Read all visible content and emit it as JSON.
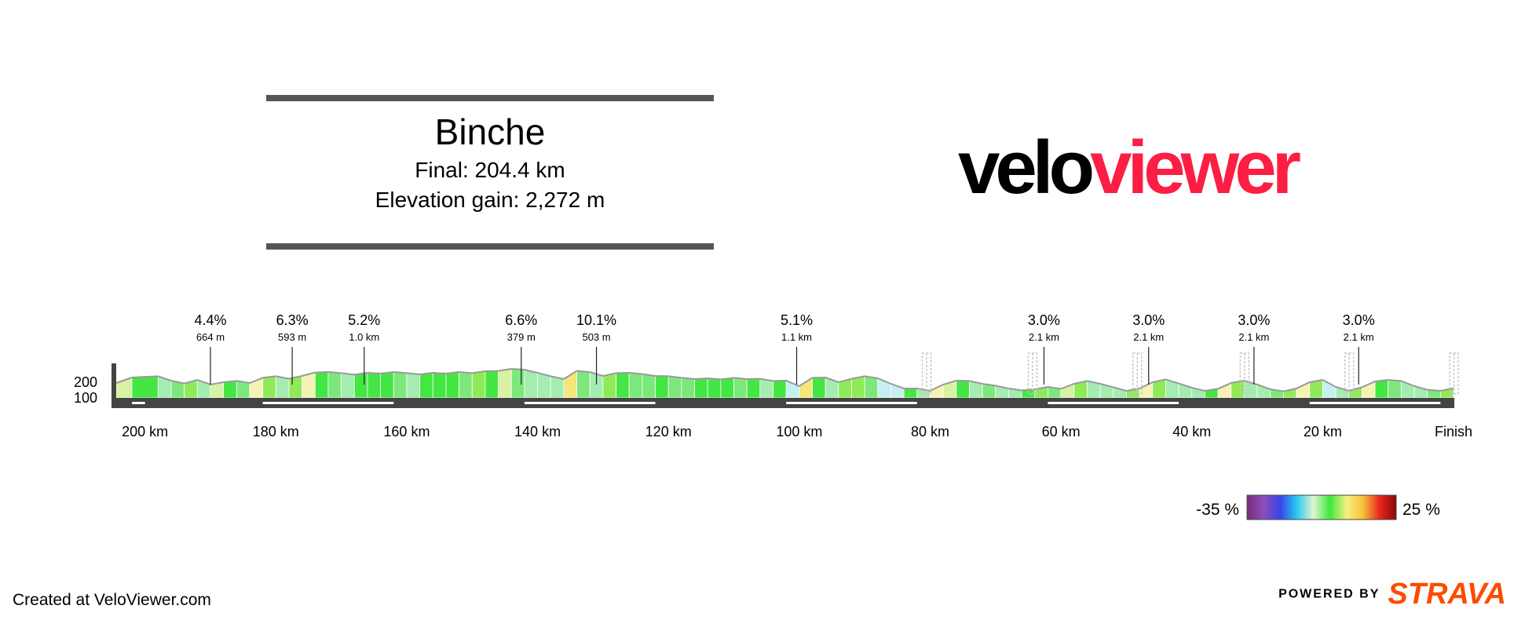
{
  "stage": {
    "title": "Binche",
    "final_label": "Final: 204.4 km",
    "elevation_label": "Elevation gain: 2,272 m"
  },
  "logo": {
    "part1": "velo",
    "part2": "viewer",
    "color1": "#000000",
    "color2": "#fc1e43"
  },
  "footer": {
    "created": "Created at VeloViewer.com",
    "powered_by": "POWERED BY",
    "strava": "STRAVA",
    "strava_color": "#fc4c02"
  },
  "chart_data": {
    "type": "area",
    "total_km": 204.4,
    "x_unit": "km",
    "x_tick_labels": [
      "200 km",
      "180 km",
      "160 km",
      "140 km",
      "120 km",
      "100 km",
      "80 km",
      "60 km",
      "40 km",
      "20 km",
      "Finish"
    ],
    "x_ticks_km_to_finish": [
      200,
      180,
      160,
      140,
      120,
      100,
      80,
      60,
      40,
      20,
      0
    ],
    "y_tick_labels": [
      "200",
      "100"
    ],
    "y_ticks": [
      200,
      100
    ],
    "profile": {
      "km_to_finish": [
        204.4,
        202,
        198,
        196,
        194,
        192,
        190,
        188,
        186,
        184,
        182,
        180,
        178,
        176,
        174,
        172,
        170,
        168,
        166,
        164,
        162,
        160,
        158,
        156,
        154,
        152,
        150,
        148,
        146,
        144,
        142,
        140,
        138,
        136,
        134,
        132,
        130,
        128,
        126,
        124,
        122,
        120,
        118,
        116,
        114,
        112,
        110,
        108,
        106,
        104,
        102,
        100,
        98,
        96,
        94,
        92,
        90,
        88,
        86,
        84,
        82,
        80,
        78,
        76,
        74,
        72,
        70,
        68,
        66,
        64,
        62,
        60,
        58,
        56,
        54,
        52,
        50,
        48,
        46,
        44,
        42,
        40,
        38,
        36,
        34,
        32,
        30,
        28,
        26,
        24,
        22,
        20,
        18,
        16,
        14,
        12,
        10,
        8,
        6,
        4,
        2,
        0
      ],
      "elevation_m": [
        135,
        170,
        178,
        150,
        132,
        155,
        125,
        140,
        148,
        135,
        168,
        178,
        162,
        180,
        202,
        205,
        198,
        188,
        200,
        195,
        205,
        198,
        190,
        200,
        195,
        205,
        198,
        210,
        212,
        225,
        220,
        200,
        178,
        160,
        212,
        205,
        180,
        198,
        200,
        192,
        180,
        178,
        168,
        160,
        165,
        158,
        168,
        160,
        162,
        148,
        150,
        115,
        168,
        170,
        140,
        162,
        178,
        165,
        130,
        100,
        100,
        85,
        125,
        150,
        148,
        130,
        118,
        100,
        88,
        95,
        110,
        98,
        130,
        148,
        130,
        108,
        85,
        100,
        140,
        158,
        132,
        105,
        85,
        98,
        135,
        150,
        125,
        95,
        82,
        100,
        140,
        155,
        110,
        85,
        108,
        145,
        155,
        148,
        115,
        92,
        85,
        102
      ],
      "gradient_pct": [
        3,
        1,
        -2,
        -1,
        2,
        -3,
        3,
        1,
        -1,
        4,
        2,
        -2,
        2,
        4,
        1,
        -1,
        -2,
        1,
        0,
        1,
        -1,
        -2,
        1,
        0,
        1,
        -1,
        2,
        1,
        3,
        -1,
        -3,
        -2,
        -2,
        5,
        -1,
        -3,
        2,
        0,
        -1,
        -1,
        0,
        -1,
        -1,
        0,
        0,
        1,
        -1,
        0,
        -2,
        0,
        -4,
        5,
        0,
        -3,
        2,
        2,
        -1,
        -4,
        -6,
        0,
        -2,
        4,
        3,
        0,
        -2,
        -1,
        -2,
        -2,
        1,
        2,
        -1,
        3,
        2,
        -2,
        -2,
        -2,
        2,
        4,
        2,
        -3,
        -3,
        -2,
        1,
        4,
        2,
        -3,
        -3,
        -1,
        2,
        4,
        2,
        -4,
        -3,
        2,
        4,
        1,
        -1,
        -3,
        -2,
        -1,
        2,
        2
      ]
    },
    "climbs": [
      {
        "km_to_finish": 190.0,
        "gradient": "4.4%",
        "length": "664 m"
      },
      {
        "km_to_finish": 177.5,
        "gradient": "6.3%",
        "length": "593 m"
      },
      {
        "km_to_finish": 166.5,
        "gradient": "5.2%",
        "length": "1.0 km"
      },
      {
        "km_to_finish": 142.5,
        "gradient": "6.6%",
        "length": "379 m"
      },
      {
        "km_to_finish": 131.0,
        "gradient": "10.1%",
        "length": "503 m"
      },
      {
        "km_to_finish": 100.4,
        "gradient": "5.1%",
        "length": "1.1 km"
      },
      {
        "km_to_finish": 62.6,
        "gradient": "3.0%",
        "length": "2.1 km"
      },
      {
        "km_to_finish": 46.6,
        "gradient": "3.0%",
        "length": "2.1 km"
      },
      {
        "km_to_finish": 30.5,
        "gradient": "3.0%",
        "length": "2.1 km"
      },
      {
        "km_to_finish": 14.5,
        "gradient": "3.0%",
        "length": "2.1 km"
      }
    ],
    "finish_line_markers_km_to_finish": [
      80.6,
      64.4,
      48.4,
      32.0,
      16.0,
      0.0
    ],
    "legend": {
      "min_label": "-35 %",
      "max_label": "25 %",
      "min": -35,
      "max": 25,
      "stops": [
        "#7a2b7a",
        "#8d4fb8",
        "#3a43e8",
        "#29c8f0",
        "#dff5d0",
        "#3de83d",
        "#f5f080",
        "#f7c13a",
        "#e8251f",
        "#8a0a0a"
      ]
    }
  }
}
